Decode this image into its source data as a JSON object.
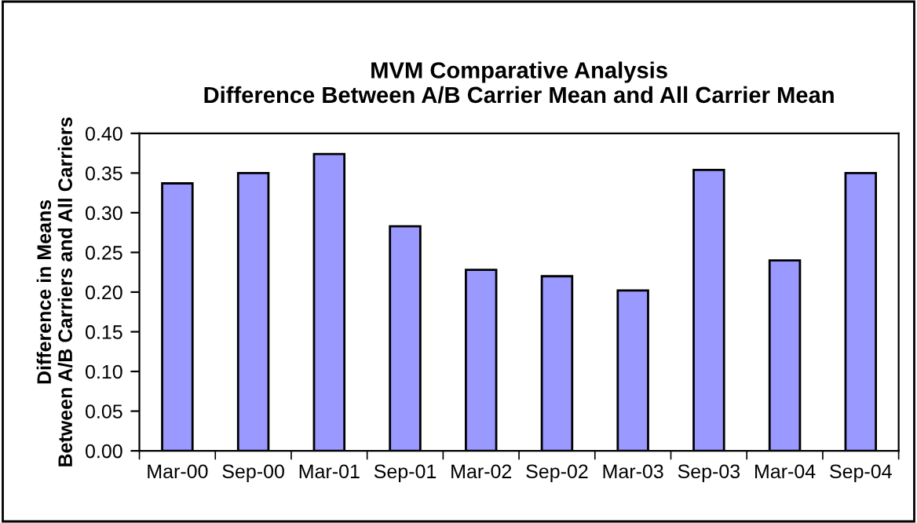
{
  "chart_data": {
    "type": "bar",
    "title": "MVM Comparative Analysis\nDifference Between A/B Carrier Mean and All Carrier Mean",
    "ylabel": "Difference in Means\nBetween A/B Carriers and All Carriers",
    "categories": [
      "Mar-00",
      "Sep-00",
      "Mar-01",
      "Sep-01",
      "Mar-02",
      "Sep-02",
      "Mar-03",
      "Sep-03",
      "Mar-04",
      "Sep-04"
    ],
    "values": [
      0.337,
      0.35,
      0.374,
      0.283,
      0.228,
      0.22,
      0.202,
      0.354,
      0.24,
      0.35
    ],
    "color": "#9999ff",
    "ylim": [
      0,
      0.4
    ],
    "yticks": [
      {
        "value": 0,
        "label": "0.00"
      },
      {
        "value": 0.05,
        "label": "0.05"
      },
      {
        "value": 0.1,
        "label": "0.10"
      },
      {
        "value": 0.15,
        "label": "0.15"
      },
      {
        "value": 0.2,
        "label": "0.20"
      },
      {
        "value": 0.25,
        "label": "0.25"
      },
      {
        "value": 0.3,
        "label": "0.30"
      },
      {
        "value": 0.35,
        "label": "0.35"
      },
      {
        "value": 0.4,
        "label": "0.40"
      }
    ],
    "grid": false,
    "legend": false
  }
}
